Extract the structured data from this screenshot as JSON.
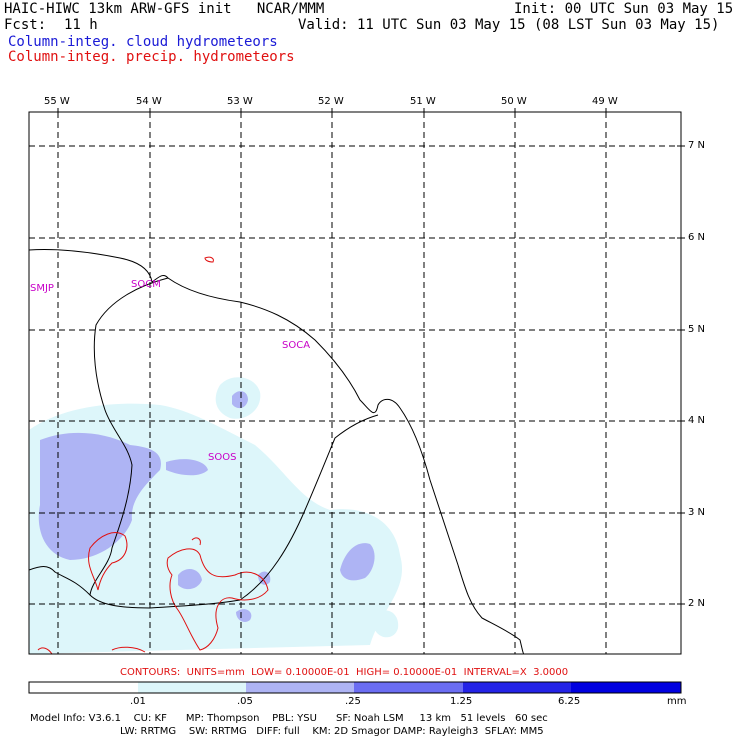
{
  "header": {
    "title": "HAIC-HIWC 13km ARW-GFS init   NCAR/MMM",
    "init": "Init: 00 UTC Sun 03 May 15",
    "fcst_label": "Fcst:",
    "fcst_value": "11 h",
    "valid": "Valid: 11 UTC Sun 03 May 15 (08 LST Sun 03 May 15)",
    "legend_cloud": "Column-integ. cloud hydrometeors",
    "legend_precip": "Column-integ. precip. hydrometeors"
  },
  "map": {
    "lon_labels": [
      "55 W",
      "54 W",
      "53 W",
      "52 W",
      "51 W",
      "50 W",
      "49 W"
    ],
    "lat_labels": [
      "7 N",
      "6 N",
      "5 N",
      "4 N",
      "3 N",
      "2 N"
    ],
    "stations": [
      "SMJP",
      "SOCM",
      "SOCA",
      "SOOS"
    ]
  },
  "contours_line": "CONTOURS:  UNITS=mm  LOW= 0.10000E-01  HIGH= 0.10000E-01  INTERVAL=X  3.0000",
  "colorbar": {
    "ticks": [
      ".01",
      ".05",
      ".25",
      "1.25",
      "6.25"
    ],
    "unit": "mm",
    "colors": [
      "#ffffff",
      "#ddf6fa",
      "#aeb4f4",
      "#6b6df2",
      "#2423e6",
      "#0000e0"
    ]
  },
  "model_info": {
    "line1": "Model Info: V3.6.1    CU: KF      MP: Thompson    PBL: YSU      SF: Noah LSM     13 km   51 levels   60 sec",
    "line2": "LW: RRTMG    SW: RRTMG   DIFF: full    KM: 2D Smagor DAMP: Rayleigh3  SFLAY: MM5"
  }
}
